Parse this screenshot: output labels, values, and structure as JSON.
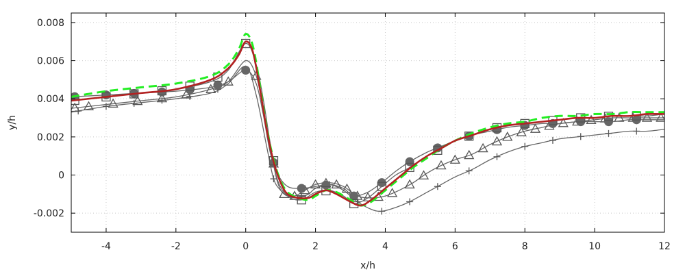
{
  "chart_data": {
    "type": "line",
    "xlabel": "x/h",
    "ylabel": "y/h",
    "xlim": [
      -5,
      12
    ],
    "ylim": [
      -0.003,
      0.0085
    ],
    "grid": true,
    "x_ticks": [
      -4,
      -2,
      0,
      2,
      4,
      6,
      8,
      10,
      12
    ],
    "x_tick_labels": [
      "-4",
      "-2",
      "0",
      "2",
      "4",
      "6",
      "8",
      "10",
      "12"
    ],
    "y_ticks": [
      -0.002,
      0,
      0.002,
      0.004,
      0.006,
      0.008
    ],
    "y_tick_labels": [
      "-0.002",
      "0",
      "0.002",
      "0.004",
      "0.006",
      "0.008"
    ],
    "series": [
      {
        "style": "solid-thin-gray",
        "color": "#666666",
        "marker": "plus",
        "x": [
          -5,
          -4,
          -3,
          -2,
          -1,
          -0.5,
          0,
          0.3,
          0.6,
          0.8,
          1.0,
          1.2,
          1.5,
          1.8,
          2.0,
          2.4,
          2.8,
          3.2,
          3.6,
          3.9,
          4.3,
          4.7,
          5.2,
          5.6,
          6.0,
          6.5,
          7.0,
          7.5,
          8.0,
          8.5,
          9.0,
          9.5,
          10.0,
          10.5,
          11.0,
          11.5,
          12.0
        ],
        "y": [
          0.0033,
          0.0036,
          0.0038,
          0.004,
          0.0043,
          0.0048,
          0.0057,
          0.0042,
          0.0015,
          -0.0002,
          -0.0008,
          -0.0011,
          -0.0012,
          -0.001,
          -0.0007,
          -0.0005,
          -0.0008,
          -0.0014,
          -0.0018,
          -0.0019,
          -0.0017,
          -0.0014,
          -0.0009,
          -0.0005,
          -0.0001,
          0.0003,
          0.0008,
          0.0012,
          0.0015,
          0.0017,
          0.0019,
          0.002,
          0.0021,
          0.0022,
          0.0023,
          0.0023,
          0.0024
        ],
        "marker_x": [
          -4.8,
          -4.0,
          -3.2,
          -2.4,
          -1.6,
          -0.8,
          0.8,
          1.6,
          2.4,
          3.2,
          3.9,
          4.7,
          5.5,
          6.4,
          7.2,
          8.0,
          8.8,
          9.6,
          10.4,
          11.2
        ]
      },
      {
        "style": "solid-thin-gray",
        "color": "#666666",
        "marker": "triangle",
        "x": [
          -5,
          -4,
          -3,
          -2,
          -1,
          -0.5,
          0,
          0.3,
          0.5,
          0.7,
          0.9,
          1.1,
          1.4,
          1.7,
          2.0,
          2.4,
          2.8,
          3.2,
          3.6,
          4.0,
          4.4,
          4.8,
          5.2,
          5.6,
          6.0,
          6.5,
          7.0,
          7.5,
          8.0,
          8.5,
          9.0,
          9.5,
          10.0,
          10.5,
          11.0,
          11.5,
          12.0
        ],
        "y": [
          0.0035,
          0.0037,
          0.0039,
          0.0041,
          0.0045,
          0.0049,
          0.006,
          0.0052,
          0.0035,
          0.0015,
          -0.0003,
          -0.001,
          -0.0011,
          -0.0008,
          -0.0005,
          -0.0004,
          -0.0006,
          -0.0011,
          -0.0012,
          -0.0011,
          -0.0008,
          -0.0004,
          0.0001,
          0.0005,
          0.0008,
          0.0011,
          0.0016,
          0.002,
          0.0023,
          0.0025,
          0.0027,
          0.0028,
          0.0029,
          0.003,
          0.003,
          0.003,
          0.003
        ],
        "marker_x": [
          -4.9,
          -4.5,
          -3.8,
          -3.1,
          -2.4,
          -1.7,
          -1.0,
          -0.5,
          0.3,
          0.8,
          1.1,
          1.4,
          1.7,
          2.0,
          2.3,
          2.6,
          2.9,
          3.2,
          3.5,
          3.8,
          4.2,
          4.7,
          5.1,
          5.6,
          6.0,
          6.4,
          6.8,
          7.2,
          7.5,
          7.9,
          8.3,
          8.7,
          9.1,
          9.5,
          9.9,
          10.3,
          10.7,
          11.1,
          11.5,
          11.9
        ]
      },
      {
        "style": "solid-thin-gray",
        "color": "#666666",
        "marker": "circle-filled",
        "x": [
          -5,
          -4,
          -3,
          -2,
          -1,
          -0.5,
          0,
          0.3,
          0.5,
          0.7,
          0.9,
          1.2,
          1.6,
          2.0,
          2.4,
          2.8,
          3.1,
          3.5,
          3.9,
          4.3,
          4.7,
          5.2,
          5.6,
          6.0,
          6.5,
          7.0,
          7.5,
          8.0,
          8.5,
          9.0,
          9.5,
          10.0,
          10.5,
          11.0,
          11.5,
          12.0
        ],
        "y": [
          0.0041,
          0.0042,
          0.0043,
          0.0044,
          0.0046,
          0.0049,
          0.0055,
          0.0048,
          0.0032,
          0.0012,
          0.0001,
          -0.0006,
          -0.0007,
          -0.0006,
          -0.0005,
          -0.0007,
          -0.0011,
          -0.0009,
          -0.0004,
          0.0002,
          0.0007,
          0.0012,
          0.0015,
          0.0018,
          0.0021,
          0.0023,
          0.0025,
          0.0026,
          0.0027,
          0.0027,
          0.0028,
          0.0028,
          0.0028,
          0.0029,
          0.0029,
          0.0029
        ],
        "marker_x": [
          -4.9,
          -4.0,
          -3.2,
          -2.4,
          -1.6,
          -0.8,
          0.0,
          0.8,
          1.6,
          2.3,
          3.1,
          3.9,
          4.7,
          5.5,
          6.4,
          7.2,
          8.0,
          8.8,
          9.6,
          10.4,
          11.2
        ]
      },
      {
        "style": "solid-thin-gray",
        "color": "#666666",
        "marker": "square",
        "x": [
          -5,
          -4,
          -3,
          -2,
          -1,
          -0.5,
          0,
          0.3,
          0.5,
          0.7,
          0.9,
          1.2,
          1.6,
          2.0,
          2.4,
          2.8,
          3.1,
          3.5,
          3.9,
          4.3,
          4.7,
          5.2,
          5.6,
          6.0,
          6.5,
          7.0,
          7.5,
          8.0,
          8.5,
          9.0,
          9.5,
          10.0,
          10.5,
          11.0,
          11.5,
          12.0
        ],
        "y": [
          0.0039,
          0.0041,
          0.0043,
          0.0045,
          0.0049,
          0.0055,
          0.0069,
          0.0058,
          0.004,
          0.0017,
          -0.0002,
          -0.0011,
          -0.0013,
          -0.0009,
          -0.0008,
          -0.0011,
          -0.0015,
          -0.0012,
          -0.0006,
          0.0,
          0.0004,
          0.001,
          0.0014,
          0.0018,
          0.0021,
          0.0024,
          0.0026,
          0.0027,
          0.0028,
          0.0029,
          0.003,
          0.003,
          0.0031,
          0.0031,
          0.0031,
          0.0032
        ],
        "marker_x": [
          -4.9,
          -4.0,
          -3.2,
          -2.4,
          -1.6,
          -0.8,
          0.0,
          0.8,
          1.6,
          2.3,
          3.1,
          3.9,
          4.7,
          5.5,
          6.4,
          7.2,
          8.0,
          8.8,
          9.6,
          10.4,
          11.2
        ]
      },
      {
        "style": "dashed-thick",
        "color": "#22ee22",
        "marker": "none",
        "x": [
          -5,
          -4,
          -3,
          -2,
          -1,
          -0.5,
          -0.2,
          0.0,
          0.2,
          0.4,
          0.6,
          0.8,
          1.0,
          1.2,
          1.5,
          1.8,
          2.0,
          2.3,
          2.6,
          3.0,
          3.3,
          3.6,
          4.0,
          4.4,
          4.8,
          5.2,
          5.6,
          6.0,
          6.5,
          7.0,
          7.5,
          8.0,
          8.5,
          9.0,
          9.5,
          10.0,
          10.5,
          11.0,
          11.5,
          12.0
        ],
        "y": [
          0.0041,
          0.0044,
          0.0046,
          0.0048,
          0.0052,
          0.0058,
          0.0066,
          0.0074,
          0.0068,
          0.0048,
          0.0025,
          0.0008,
          -0.0003,
          -0.0009,
          -0.0012,
          -0.0013,
          -0.0011,
          -0.0008,
          -0.0009,
          -0.0013,
          -0.0016,
          -0.0014,
          -0.0008,
          -0.0002,
          0.0004,
          0.0009,
          0.0014,
          0.0018,
          0.0022,
          0.0025,
          0.0027,
          0.0028,
          0.003,
          0.0031,
          0.0031,
          0.0032,
          0.0032,
          0.0033,
          0.0033,
          0.0033
        ]
      },
      {
        "style": "solid-thick",
        "color": "#b22222",
        "marker": "none",
        "x": [
          -5,
          -4,
          -3,
          -2,
          -1,
          -0.5,
          -0.2,
          0.0,
          0.2,
          0.4,
          0.6,
          0.8,
          1.0,
          1.2,
          1.5,
          1.8,
          2.0,
          2.3,
          2.6,
          3.0,
          3.3,
          3.6,
          4.0,
          4.4,
          4.8,
          5.2,
          5.6,
          6.0,
          6.5,
          7.0,
          7.5,
          8.0,
          8.5,
          9.0,
          9.5,
          10.0,
          10.5,
          11.0,
          11.5,
          12.0
        ],
        "y": [
          0.0039,
          0.0041,
          0.0043,
          0.0045,
          0.005,
          0.0056,
          0.0063,
          0.007,
          0.0065,
          0.0046,
          0.0024,
          0.0007,
          -0.0004,
          -0.001,
          -0.0012,
          -0.0012,
          -0.001,
          -0.0008,
          -0.001,
          -0.0014,
          -0.0016,
          -0.0013,
          -0.0007,
          -0.0001,
          0.0005,
          0.001,
          0.0014,
          0.0018,
          0.0021,
          0.0024,
          0.0026,
          0.0027,
          0.0028,
          0.0029,
          0.003,
          0.003,
          0.0031,
          0.0031,
          0.0032,
          0.0032
        ]
      }
    ]
  }
}
